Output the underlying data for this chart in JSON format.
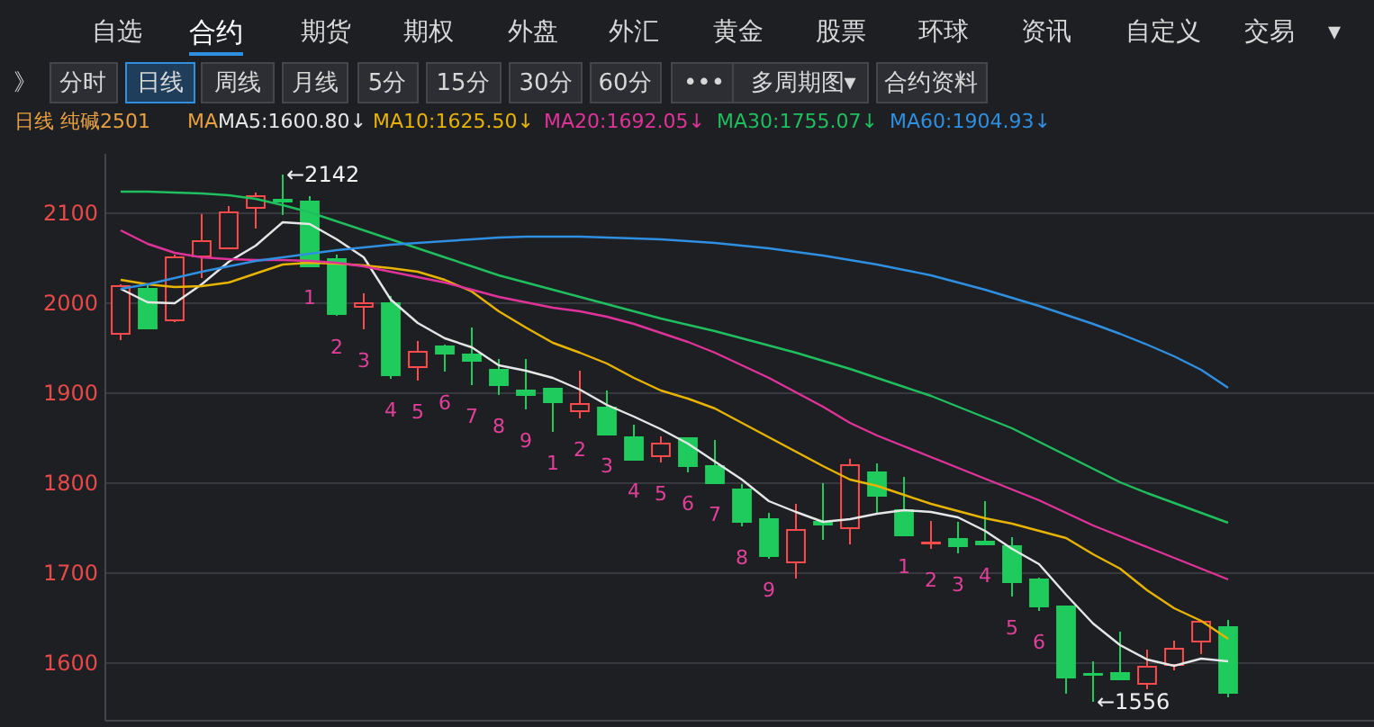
{
  "chart_data": {
    "type": "candlestick",
    "title": "日线 纯碱2501",
    "legend_title": "MA",
    "categories": [
      null,
      null,
      null,
      null,
      null,
      null,
      null,
      null,
      null,
      null,
      null,
      null,
      null,
      null,
      null,
      null,
      null,
      null,
      null,
      null,
      null,
      null,
      null,
      null,
      null,
      null,
      null,
      null,
      null,
      null,
      null,
      null,
      null,
      null,
      null,
      null,
      null,
      null,
      null,
      null,
      null,
      null
    ],
    "ohlc": [
      [
        1965,
        2020,
        1958,
        2018
      ],
      [
        2015,
        2020,
        1970,
        1971
      ],
      [
        1980,
        2053,
        1978,
        2050
      ],
      [
        2051,
        2098,
        2027,
        2068
      ],
      [
        2060,
        2107,
        2060,
        2100
      ],
      [
        2105,
        2122,
        2082,
        2118
      ],
      [
        2114,
        2142,
        2097,
        2112
      ],
      [
        2112,
        2118,
        2040,
        2040
      ],
      [
        2048,
        2053,
        1985,
        1987
      ],
      [
        1995,
        2010,
        1970,
        1999
      ],
      [
        1999,
        2007,
        1915,
        1919
      ],
      [
        1928,
        1957,
        1913,
        1945
      ],
      [
        1951,
        1953,
        1923,
        1943
      ],
      [
        1942,
        1972,
        1908,
        1935
      ],
      [
        1925,
        1937,
        1897,
        1908
      ],
      [
        1902,
        1937,
        1881,
        1897
      ],
      [
        1904,
        1904,
        1856,
        1889
      ],
      [
        1879,
        1924,
        1871,
        1887
      ],
      [
        1883,
        1902,
        1853,
        1853
      ],
      [
        1850,
        1864,
        1825,
        1825
      ],
      [
        1829,
        1851,
        1822,
        1843
      ],
      [
        1849,
        1849,
        1811,
        1818
      ],
      [
        1818,
        1847,
        1799,
        1799
      ],
      [
        1792,
        1798,
        1751,
        1756
      ],
      [
        1759,
        1766,
        1715,
        1718
      ],
      [
        1711,
        1776,
        1693,
        1747
      ],
      [
        1756,
        1799,
        1736,
        1753
      ],
      [
        1749,
        1826,
        1731,
        1819
      ],
      [
        1811,
        1821,
        1766,
        1785
      ],
      [
        1769,
        1806,
        1741,
        1741
      ],
      [
        1732,
        1757,
        1726,
        1733
      ],
      [
        1737,
        1756,
        1721,
        1729
      ],
      [
        1734,
        1779,
        1731,
        1731
      ],
      [
        1729,
        1739,
        1673,
        1689
      ],
      [
        1692,
        1694,
        1657,
        1662
      ],
      [
        1662,
        1662,
        1565,
        1583
      ],
      [
        1587,
        1601,
        1556,
        1586
      ],
      [
        1588,
        1634,
        1581,
        1581
      ],
      [
        1576,
        1614,
        1570,
        1595
      ],
      [
        1597,
        1624,
        1591,
        1615
      ],
      [
        1623,
        1645,
        1609,
        1645
      ],
      [
        1639,
        1647,
        1561,
        1566
      ]
    ],
    "colors": [
      "#ff4b4b",
      "#1ecb5c",
      "#ff4b4b",
      "#ff4b4b",
      "#ff4b4b",
      "#ff4b4b",
      "#1ecb5c",
      "#1ecb5c",
      "#1ecb5c",
      "#ff4b4b",
      "#1ecb5c",
      "#ff4b4b",
      "#1ecb5c",
      "#1ecb5c",
      "#1ecb5c",
      "#1ecb5c",
      "#1ecb5c",
      "#ff4b4b",
      "#1ecb5c",
      "#1ecb5c",
      "#ff4b4b",
      "#1ecb5c",
      "#1ecb5c",
      "#1ecb5c",
      "#1ecb5c",
      "#ff4b4b",
      "#1ecb5c",
      "#ff4b4b",
      "#1ecb5c",
      "#1ecb5c",
      "#ff4b4b",
      "#1ecb5c",
      "#1ecb5c",
      "#1ecb5c",
      "#1ecb5c",
      "#1ecb5c",
      "#1ecb5c",
      "#1ecb5c",
      "#ff4b4b",
      "#ff4b4b",
      "#ff4b4b",
      "#1ecb5c"
    ],
    "value_labels": [
      null,
      null,
      null,
      null,
      null,
      null,
      null,
      "1",
      "2",
      "3",
      "4",
      "5",
      "6",
      "7",
      "8",
      "9",
      "1",
      "2",
      "3",
      "4",
      "5",
      "6",
      "7",
      "8",
      "9",
      null,
      null,
      null,
      null,
      "1",
      "2",
      "3",
      "4",
      "5",
      "6",
      null,
      null,
      null,
      null,
      null,
      null,
      null
    ],
    "series": [
      {
        "name": "MA5:1600.80↓",
        "type": "line",
        "color": "#e6e6e6",
        "values": [
          2015,
          2000,
          1999,
          2020,
          2045,
          2063,
          2089,
          2087,
          2070,
          2050,
          2003,
          1977,
          1960,
          1950,
          1930,
          1924,
          1916,
          1903,
          1886,
          1873,
          1859,
          1843,
          1823,
          1803,
          1779,
          1767,
          1756,
          1759,
          1765,
          1769,
          1767,
          1761,
          1746,
          1726,
          1709,
          1675,
          1643,
          1619,
          1603,
          1596,
          1604,
          1601
        ]
      },
      {
        "name": "MA10:1625.50↓",
        "type": "line",
        "color": "#e8b400",
        "values": [
          2025,
          2020,
          2017,
          2018,
          2022,
          2032,
          2042,
          2044,
          2043,
          2041,
          2038,
          2034,
          2025,
          2012,
          1990,
          1972,
          1955,
          1944,
          1932,
          1916,
          1902,
          1893,
          1882,
          1866,
          1850,
          1834,
          1818,
          1803,
          1796,
          1786,
          1776,
          1768,
          1760,
          1754,
          1746,
          1738,
          1720,
          1704,
          1680,
          1660,
          1646,
          1626
        ]
      },
      {
        "name": "MA20:1692.05↓",
        "type": "line",
        "color": "#e0339a",
        "values": [
          2080,
          2065,
          2055,
          2050,
          2048,
          2047,
          2047,
          2046,
          2044,
          2040,
          2034,
          2028,
          2022,
          2014,
          2006,
          2000,
          1994,
          1990,
          1984,
          1976,
          1966,
          1956,
          1944,
          1930,
          1916,
          1900,
          1884,
          1866,
          1852,
          1840,
          1828,
          1816,
          1804,
          1792,
          1780,
          1766,
          1752,
          1740,
          1728,
          1716,
          1704,
          1692
        ]
      },
      {
        "name": "MA30:1755.07↓",
        "type": "line",
        "color": "#1fbf5f",
        "values": [
          2123,
          2123,
          2122,
          2121,
          2119,
          2115,
          2108,
          2100,
          2090,
          2080,
          2070,
          2060,
          2050,
          2040,
          2030,
          2022,
          2014,
          2006,
          1998,
          1990,
          1982,
          1975,
          1968,
          1960,
          1952,
          1944,
          1935,
          1926,
          1916,
          1906,
          1896,
          1884,
          1872,
          1860,
          1845,
          1830,
          1815,
          1800,
          1788,
          1777,
          1766,
          1755
        ]
      },
      {
        "name": "MA60:1904.93↓",
        "type": "line",
        "color": "#2f8fe0",
        "values": [
          2015,
          2020,
          2027,
          2034,
          2040,
          2046,
          2050,
          2054,
          2058,
          2061,
          2064,
          2066,
          2068,
          2070,
          2072,
          2073,
          2073,
          2073,
          2072,
          2071,
          2070,
          2068,
          2066,
          2063,
          2060,
          2056,
          2052,
          2047,
          2042,
          2036,
          2030,
          2022,
          2014,
          2005,
          1996,
          1986,
          1976,
          1965,
          1953,
          1940,
          1925,
          1905
        ]
      }
    ],
    "ylim": [
      1536,
      2166
    ],
    "yticks": [
      1600,
      1700,
      1800,
      1900,
      2000,
      2100
    ],
    "grid": "y",
    "legend": "top left",
    "tick_labels": "y",
    "annotations": [
      "自选",
      "合约",
      "期货",
      "期权",
      "外盘",
      "外汇",
      "黄金",
      "股票",
      "环球",
      "资讯",
      "自定义",
      "交易",
      "▾",
      "》",
      "分时",
      "日线",
      "周线",
      "月线",
      "5分",
      "15分",
      "30分",
      "60分",
      "•••",
      "多周期图",
      "▾",
      "合约资料",
      "←2142",
      "←1556"
    ]
  }
}
